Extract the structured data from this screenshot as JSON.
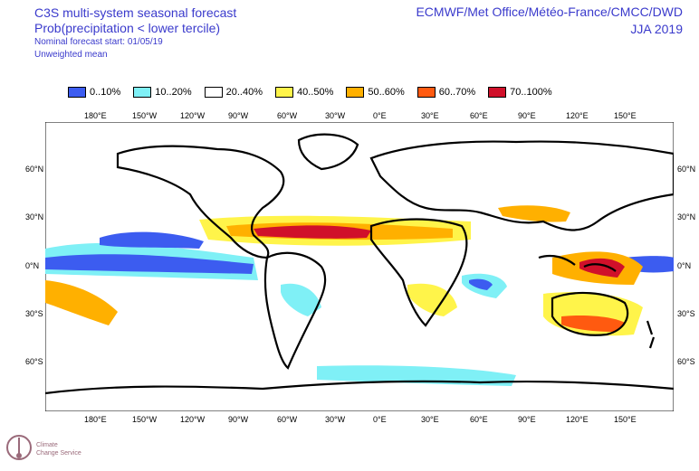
{
  "header": {
    "title_line1": "C3S multi-system seasonal forecast",
    "title_line2": "Prob(precipitation < lower tercile)",
    "title_line3": "Nominal forecast start: 01/05/19",
    "title_line4": "Unweighted mean",
    "centres": "ECMWF/Met Office/Météo-France/CMCC/DWD",
    "season": "JJA 2019"
  },
  "legend": [
    {
      "label": "0..10%",
      "color": "#3c5cf0"
    },
    {
      "label": "10..20%",
      "color": "#7ff0f6"
    },
    {
      "label": "20..40%",
      "color": "#ffffff"
    },
    {
      "label": "40..50%",
      "color": "#fff44a"
    },
    {
      "label": "50..60%",
      "color": "#ffb000"
    },
    {
      "label": "60..70%",
      "color": "#ff5a10"
    },
    {
      "label": "70..100%",
      "color": "#d0102a"
    }
  ],
  "axes": {
    "lon_labels": [
      "180°E",
      "150°W",
      "120°W",
      "90°W",
      "60°W",
      "30°W",
      "0°E",
      "30°E",
      "60°E",
      "90°E",
      "120°E",
      "150°E"
    ],
    "lat_labels": [
      "60°N",
      "30°N",
      "0°N",
      "30°S",
      "60°S"
    ]
  },
  "logo": {
    "name": "Climate Change Service",
    "line1": "Climate",
    "line2": "Change Service"
  }
}
